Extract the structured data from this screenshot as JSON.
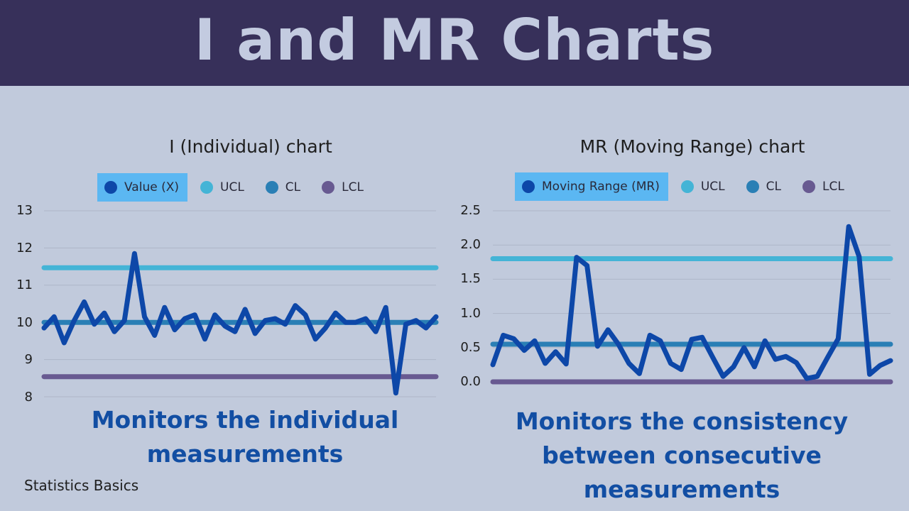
{
  "title": "I and MR Charts",
  "footer": "Statistics Basics",
  "colors": {
    "banner": "#37305a",
    "background": "#c1cadc",
    "value": "#0d47a8",
    "ucl": "#44b4d6",
    "cl": "#2a7fb5",
    "lcl": "#685a91",
    "caption": "#124ea3"
  },
  "charts": [
    {
      "title": "I (Individual) chart",
      "legend": [
        "Value (X)",
        "UCL",
        "CL",
        "LCL"
      ],
      "caption": [
        "Monitors the individual",
        "measurements"
      ]
    },
    {
      "title": "MR (Moving Range) chart",
      "legend": [
        "Moving Range (MR)",
        "UCL",
        "CL",
        "LCL"
      ],
      "caption": [
        "Monitors the consistency",
        "between consecutive",
        "measurements"
      ]
    }
  ],
  "chart_data": [
    {
      "type": "line",
      "title": "I (Individual) chart",
      "yticks": [
        "13",
        "12",
        "11",
        "10",
        "9",
        "8"
      ],
      "ylim": [
        8,
        13
      ],
      "grid": true,
      "legend_position": "top",
      "series": [
        {
          "name": "Value (X)",
          "values": [
            9.85,
            10.15,
            9.45,
            10.05,
            10.55,
            9.95,
            10.25,
            9.75,
            10.05,
            11.85,
            10.15,
            9.65,
            10.4,
            9.8,
            10.1,
            10.2,
            9.55,
            10.2,
            9.9,
            9.75,
            10.35,
            9.7,
            10.05,
            10.1,
            9.95,
            10.45,
            10.2,
            9.55,
            9.85,
            10.25,
            10.0,
            10.0,
            10.1,
            9.75,
            10.4,
            8.1,
            9.95,
            10.05,
            9.85,
            10.15
          ]
        },
        {
          "name": "UCL",
          "values": [
            11.47,
            11.47
          ]
        },
        {
          "name": "CL",
          "values": [
            10.0,
            10.0
          ]
        },
        {
          "name": "LCL",
          "values": [
            8.54,
            8.54
          ]
        }
      ]
    },
    {
      "type": "line",
      "title": "MR (Moving Range) chart",
      "yticks": [
        "2.5",
        "2.0",
        "1.5",
        "1.0",
        "0.5",
        "0.0"
      ],
      "ylim": [
        0,
        2.5
      ],
      "grid": true,
      "legend_position": "top",
      "series": [
        {
          "name": "Moving Range (MR)",
          "values": [
            0.25,
            0.68,
            0.63,
            0.46,
            0.6,
            0.27,
            0.44,
            0.26,
            1.82,
            1.7,
            0.52,
            0.76,
            0.55,
            0.27,
            0.12,
            0.68,
            0.6,
            0.27,
            0.18,
            0.62,
            0.65,
            0.36,
            0.08,
            0.22,
            0.5,
            0.22,
            0.6,
            0.33,
            0.37,
            0.28,
            0.05,
            0.08,
            0.36,
            0.63,
            2.27,
            1.83,
            0.11,
            0.24,
            0.31
          ]
        },
        {
          "name": "UCL",
          "values": [
            1.8,
            1.8
          ]
        },
        {
          "name": "CL",
          "values": [
            0.55,
            0.55
          ]
        },
        {
          "name": "LCL",
          "values": [
            0.0,
            0.0
          ]
        }
      ]
    }
  ]
}
